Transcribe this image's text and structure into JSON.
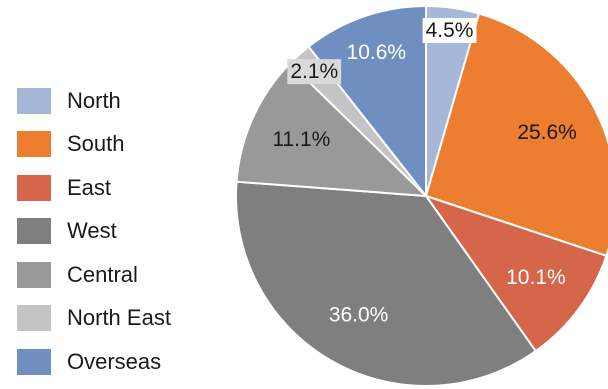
{
  "chart_data": {
    "type": "pie",
    "title": "",
    "legend_position": "left",
    "slices": [
      {
        "name": "North",
        "value": 4.5,
        "label": "4.5%",
        "color": "#a5b8d7",
        "label_color": "#1a1a1a",
        "label_bg": "#ffffff"
      },
      {
        "name": "South",
        "value": 25.6,
        "label": "25.6%",
        "color": "#ed7d31",
        "label_color": "#1a1a1a",
        "label_bg": ""
      },
      {
        "name": "East",
        "value": 10.1,
        "label": "10.1%",
        "color": "#d5664a",
        "label_color": "#ffffff",
        "label_bg": ""
      },
      {
        "name": "West",
        "value": 36.0,
        "label": "36.0%",
        "color": "#7f7f7f",
        "label_color": "#ffffff",
        "label_bg": ""
      },
      {
        "name": "Central",
        "value": 11.1,
        "label": "11.1%",
        "color": "#999999",
        "label_color": "#1a1a1a",
        "label_bg": ""
      },
      {
        "name": "North East",
        "value": 2.1,
        "label": "2.1%",
        "color": "#c4c4c4",
        "label_color": "#1a1a1a",
        "label_bg": "#d9d9d9"
      },
      {
        "name": "Overseas",
        "value": 10.6,
        "label": "10.6%",
        "color": "#6f8fc0",
        "label_color": "#ffffff",
        "label_bg": ""
      }
    ]
  }
}
